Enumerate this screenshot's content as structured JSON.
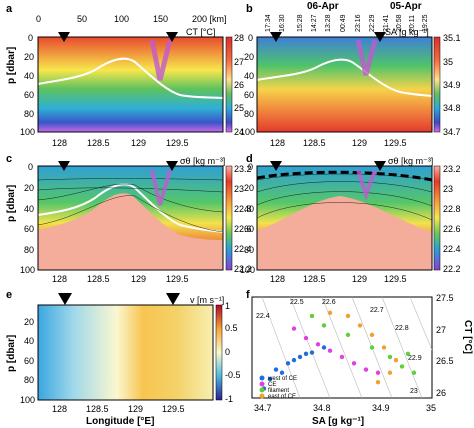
{
  "chart_data": [
    {
      "panel": "a",
      "type": "heatmap",
      "variable_label": "CT [°C]",
      "ylabel": "p [dbar]",
      "x_top_ticks": [
        "0",
        "50",
        "100",
        "150",
        "200 [km]"
      ],
      "x_bottom_ticks": [
        "128",
        "128.5",
        "129",
        "129.5"
      ],
      "y_ticks": [
        "0",
        "20",
        "40",
        "60",
        "80",
        "100"
      ],
      "colorbar_ticks": [
        "28",
        "27",
        "26",
        "25",
        "24"
      ],
      "xlim": [
        127.8,
        129.75
      ],
      "ylim": [
        0,
        100
      ],
      "clim": [
        24,
        28
      ]
    },
    {
      "panel": "b",
      "type": "heatmap",
      "variable_label": "SA [g kg⁻¹]",
      "top_dates": [
        "06-Apr",
        "05-Apr"
      ],
      "top_times": [
        "17:34",
        "16:30",
        "15:28",
        "14:27",
        "13:28",
        "00:49",
        "23:16",
        "22:29",
        "21:41",
        "20:58",
        "20:11",
        "19:25"
      ],
      "colorbar_ticks": [
        "35.1",
        "35",
        "34.9",
        "34.8",
        "34.7"
      ],
      "x_ticks": [
        "128",
        "128.5",
        "129",
        "129.5"
      ],
      "y_ticks": [
        "0",
        "20",
        "40",
        "60",
        "80",
        "100"
      ],
      "clim": [
        34.7,
        35.1
      ]
    },
    {
      "panel": "c",
      "type": "heatmap",
      "variable_label": "σθ [kg m⁻³]",
      "ylabel": "p [dbar]",
      "x_ticks": [
        "128",
        "128.5",
        "129",
        "129.5"
      ],
      "y_ticks": [
        "0",
        "20",
        "40",
        "60",
        "80",
        "100"
      ],
      "colorbar_ticks": [
        "23.2",
        "23",
        "22.8",
        "22.6",
        "22.4",
        "22.2"
      ],
      "clim": [
        22.2,
        23.2
      ]
    },
    {
      "panel": "d",
      "type": "heatmap",
      "variable_label": "σθ [kg m⁻³]",
      "x_ticks": [
        "128",
        "128.5",
        "129",
        "129.5"
      ],
      "y_ticks": [
        "0",
        "20",
        "40",
        "60",
        "80",
        "100"
      ],
      "colorbar_ticks": [
        "23.2",
        "23",
        "22.8",
        "22.6",
        "22.4",
        "22.2"
      ]
    },
    {
      "panel": "e",
      "type": "heatmap",
      "variable_label": "v [m s⁻¹]",
      "ylabel": "p [dbar]",
      "xlabel": "Longitude [°E]",
      "x_ticks": [
        "128",
        "128.5",
        "129",
        "129.5"
      ],
      "y_ticks": [
        "20",
        "40",
        "60",
        "80",
        "100"
      ],
      "colorbar_ticks": [
        "1",
        "0.5",
        "0",
        "-0.5",
        "-1"
      ],
      "clim": [
        -1,
        1
      ]
    },
    {
      "panel": "f",
      "type": "scatter",
      "xlabel": "SA [g kg⁻¹]",
      "ylabel": "CT [°C]",
      "x_ticks": [
        "34.7",
        "34.8",
        "34.9",
        "35"
      ],
      "y_ticks": [
        "27.5",
        "27",
        "26.5",
        "26"
      ],
      "xlim": [
        34.7,
        35.0
      ],
      "ylim": [
        25.9,
        27.5
      ],
      "isopycnal_labels": [
        "22.4",
        "22.5",
        "22.6",
        "22.7",
        "22.8",
        "22.9",
        "23"
      ],
      "legend": [
        "west of CE",
        "CE",
        "filament",
        "east of CE"
      ],
      "legend_position": "bottom-left",
      "series": [
        {
          "name": "west of CE",
          "color": "#1f6fd6",
          "points": [
            [
              34.72,
              26.05
            ],
            [
              34.73,
              26.2
            ],
            [
              34.74,
              26.35
            ],
            [
              34.76,
              26.45
            ],
            [
              34.78,
              26.55
            ],
            [
              34.8,
              26.62
            ],
            [
              34.82,
              26.7
            ],
            [
              34.75,
              26.3
            ],
            [
              34.77,
              26.5
            ],
            [
              34.79,
              26.6
            ]
          ]
        },
        {
          "name": "CE",
          "color": "#e040e0",
          "points": [
            [
              34.77,
              27.0
            ],
            [
              34.79,
              26.85
            ],
            [
              34.81,
              26.75
            ],
            [
              34.83,
              26.65
            ],
            [
              34.85,
              26.55
            ],
            [
              34.87,
              26.45
            ],
            [
              34.89,
              26.35
            ],
            [
              34.91,
              26.3
            ]
          ]
        },
        {
          "name": "filament",
          "color": "#5fcf3a",
          "points": [
            [
              34.8,
              27.2
            ],
            [
              34.82,
              27.05
            ],
            [
              34.86,
              26.9
            ],
            [
              34.9,
              26.7
            ],
            [
              34.93,
              26.55
            ],
            [
              34.96,
              26.6
            ],
            [
              34.95,
              26.4
            ],
            [
              34.97,
              26.3
            ]
          ]
        },
        {
          "name": "east of CE",
          "color": "#f0a030",
          "points": [
            [
              34.83,
              27.25
            ],
            [
              34.86,
              27.2
            ],
            [
              34.88,
              27.05
            ],
            [
              34.9,
              26.9
            ],
            [
              34.92,
              26.7
            ],
            [
              34.94,
              26.5
            ],
            [
              34.93,
              26.3
            ],
            [
              34.91,
              26.15
            ]
          ]
        }
      ]
    }
  ]
}
